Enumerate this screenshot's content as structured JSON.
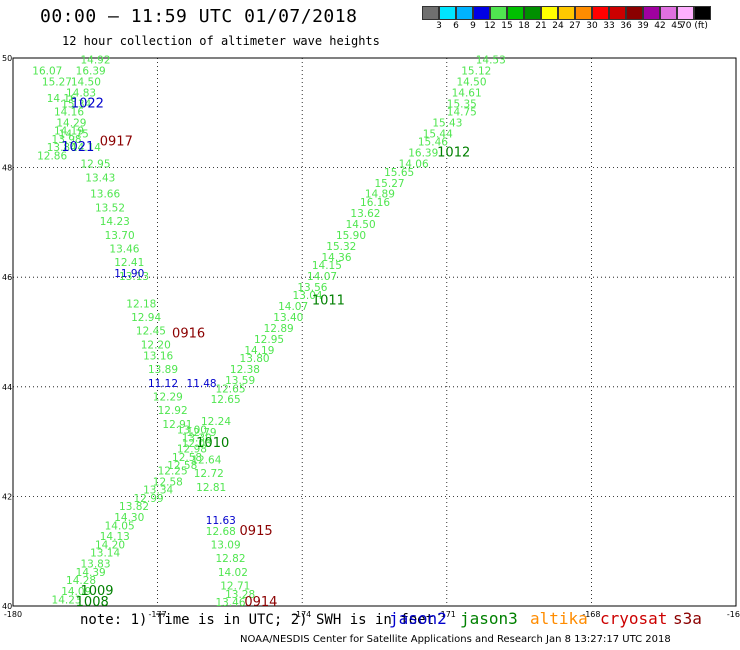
{
  "header": {
    "title": "00:00 – 11:59 UTC 01/07/2018",
    "subtitle": "12 hour collection of altimeter wave heights"
  },
  "colorbar": {
    "colors": [
      "#707070",
      "#00e5ff",
      "#00b3ff",
      "#0000e6",
      "#50e650",
      "#00c000",
      "#008f00",
      "#ffff00",
      "#ffc800",
      "#ff8c00",
      "#ff0000",
      "#cc0000",
      "#8b0000",
      "#a000a0",
      "#e070e0",
      "#ffb0ff",
      "#000000"
    ],
    "labels": [
      "3",
      "6",
      "9",
      "12",
      "15",
      "18",
      "21",
      "24",
      "27",
      "30",
      "33",
      "36",
      "39",
      "42",
      "45",
      "70 (ft)"
    ]
  },
  "axes": {
    "lon_min": -180,
    "lon_max": -165,
    "lat_min": 40,
    "lat_max": 50,
    "lon_ticks": [
      "-180",
      "-177",
      "-174",
      "-171",
      "-168",
      "-165"
    ],
    "lat_ticks": [
      "50",
      "48",
      "46",
      "44",
      "42",
      "40"
    ]
  },
  "colors": {
    "jason2": "#0000cc",
    "jason3": "#008000",
    "altika": "#ff8c00",
    "cryosat": "#cc0000",
    "s3a": "#8b0000",
    "wave_15_18": "#50e650",
    "wave_12_15": "#50e650"
  },
  "satellites": [
    {
      "name": "jason2",
      "color": "#0000cc"
    },
    {
      "name": "jason3",
      "color": "#008000"
    },
    {
      "name": "altika",
      "color": "#ff8c00"
    },
    {
      "name": "cryosat",
      "color": "#cc0000"
    },
    {
      "name": "s3a",
      "color": "#8b0000"
    }
  ],
  "footer": {
    "note": "note: 1) Time is in UTC; 2) SWH is in feet",
    "credit": "NOAA/NESDIS Center for Satellite Applications and Research   Jan  8 13:27:17 UTC 2018"
  },
  "map_data": {
    "time_labels": [
      {
        "text": "1022",
        "lon": -178.8,
        "lat": 49.1,
        "color": "#0000cc"
      },
      {
        "text": "1021",
        "lon": -179.0,
        "lat": 48.3,
        "color": "#0000cc"
      },
      {
        "text": "0917",
        "lon": -178.2,
        "lat": 48.4,
        "color": "#8b0000"
      },
      {
        "text": "1012",
        "lon": -171.2,
        "lat": 48.2,
        "color": "#008000"
      },
      {
        "text": "1011",
        "lon": -173.8,
        "lat": 45.5,
        "color": "#008000"
      },
      {
        "text": "0916",
        "lon": -176.7,
        "lat": 44.9,
        "color": "#8b0000"
      },
      {
        "text": "1010",
        "lon": -176.2,
        "lat": 42.9,
        "color": "#008000"
      },
      {
        "text": "0915",
        "lon": -175.3,
        "lat": 41.3,
        "color": "#8b0000"
      },
      {
        "text": "1009",
        "lon": -178.6,
        "lat": 40.2,
        "color": "#008000"
      },
      {
        "text": "1008",
        "lon": -178.7,
        "lat": 40.0,
        "color": "#008000"
      },
      {
        "text": "0914",
        "lon": -175.2,
        "lat": 40.0,
        "color": "#8b0000"
      }
    ],
    "tracks": [
      {
        "name": "track-0917",
        "color": "#50e650",
        "points": [
          {
            "v": "16.07",
            "lon": -179.6,
            "lat": 49.7
          },
          {
            "v": "15.27",
            "lon": -179.4,
            "lat": 49.5
          },
          {
            "v": "14.16",
            "lon": -179.3,
            "lat": 49.2
          },
          {
            "v": "14.16",
            "lon": -179.15,
            "lat": 48.95
          },
          {
            "v": "14.29",
            "lon": -179.1,
            "lat": 48.75
          },
          {
            "v": "14.19",
            "lon": -179.15,
            "lat": 48.6
          },
          {
            "v": "13.98",
            "lon": -179.2,
            "lat": 48.45
          },
          {
            "v": "13.84",
            "lon": -179.3,
            "lat": 48.3
          },
          {
            "v": "12.86",
            "lon": -179.5,
            "lat": 48.15
          },
          {
            "v": "14.14",
            "lon": -178.8,
            "lat": 48.3
          },
          {
            "v": "12.95",
            "lon": -178.6,
            "lat": 48.0
          },
          {
            "v": "13.43",
            "lon": -178.5,
            "lat": 47.75
          },
          {
            "v": "13.66",
            "lon": -178.4,
            "lat": 47.45
          },
          {
            "v": "13.52",
            "lon": -178.3,
            "lat": 47.2
          },
          {
            "v": "14.23",
            "lon": -178.2,
            "lat": 46.95
          },
          {
            "v": "13.70",
            "lon": -178.1,
            "lat": 46.7
          },
          {
            "v": "13.46",
            "lon": -178.0,
            "lat": 46.45
          },
          {
            "v": "12.41",
            "lon": -177.9,
            "lat": 46.2
          },
          {
            "v": "13.13",
            "lon": -177.8,
            "lat": 45.95
          },
          {
            "v": "12.18",
            "lon": -177.65,
            "lat": 45.45
          },
          {
            "v": "12.94",
            "lon": -177.55,
            "lat": 45.2
          },
          {
            "v": "12.45",
            "lon": -177.45,
            "lat": 44.95
          },
          {
            "v": "12.20",
            "lon": -177.35,
            "lat": 44.7
          },
          {
            "v": "13.16",
            "lon": -177.3,
            "lat": 44.5
          },
          {
            "v": "13.89",
            "lon": -177.2,
            "lat": 44.25
          },
          {
            "v": "12.29",
            "lon": -177.1,
            "lat": 43.75
          },
          {
            "v": "12.92",
            "lon": -177.0,
            "lat": 43.5
          },
          {
            "v": "12.91",
            "lon": -176.9,
            "lat": 43.25
          },
          {
            "v": "13.00",
            "lon": -176.6,
            "lat": 43.15
          },
          {
            "v": "13.30",
            "lon": -176.5,
            "lat": 43.0
          },
          {
            "v": "12.64",
            "lon": -176.3,
            "lat": 42.6
          },
          {
            "v": "12.72",
            "lon": -176.25,
            "lat": 42.35
          },
          {
            "v": "12.81",
            "lon": -176.2,
            "lat": 42.1
          },
          {
            "v": "12.68",
            "lon": -176.0,
            "lat": 41.3
          },
          {
            "v": "13.09",
            "lon": -175.9,
            "lat": 41.05
          },
          {
            "v": "12.82",
            "lon": -175.8,
            "lat": 40.8
          },
          {
            "v": "14.02",
            "lon": -175.75,
            "lat": 40.55
          },
          {
            "v": "12.71",
            "lon": -175.7,
            "lat": 40.3
          },
          {
            "v": "13.28",
            "lon": -175.6,
            "lat": 40.15
          },
          {
            "v": "13.46",
            "lon": -175.8,
            "lat": 40.0
          }
        ]
      },
      {
        "name": "track-1012-1008",
        "color": "#50e650",
        "points": [
          {
            "v": "14.53",
            "lon": -170.4,
            "lat": 49.9
          },
          {
            "v": "15.12",
            "lon": -170.7,
            "lat": 49.7
          },
          {
            "v": "14.50",
            "lon": -170.8,
            "lat": 49.5
          },
          {
            "v": "14.61",
            "lon": -170.9,
            "lat": 49.3
          },
          {
            "v": "15.35",
            "lon": -171.0,
            "lat": 49.1
          },
          {
            "v": "14.75",
            "lon": -171.0,
            "lat": 48.95
          },
          {
            "v": "15.43",
            "lon": -171.3,
            "lat": 48.75
          },
          {
            "v": "15.44",
            "lon": -171.5,
            "lat": 48.55
          },
          {
            "v": "15.46",
            "lon": -171.6,
            "lat": 48.4
          },
          {
            "v": "16.39",
            "lon": -171.8,
            "lat": 48.2
          },
          {
            "v": "14.06",
            "lon": -172.0,
            "lat": 48.0
          },
          {
            "v": "15.65",
            "lon": -172.3,
            "lat": 47.85
          },
          {
            "v": "15.27",
            "lon": -172.5,
            "lat": 47.65
          },
          {
            "v": "14.89",
            "lon": -172.7,
            "lat": 47.45
          },
          {
            "v": "16.16",
            "lon": -172.8,
            "lat": 47.3
          },
          {
            "v": "13.62",
            "lon": -173.0,
            "lat": 47.1
          },
          {
            "v": "14.50",
            "lon": -173.1,
            "lat": 46.9
          },
          {
            "v": "15.90",
            "lon": -173.3,
            "lat": 46.7
          },
          {
            "v": "15.32",
            "lon": -173.5,
            "lat": 46.5
          },
          {
            "v": "14.36",
            "lon": -173.6,
            "lat": 46.3
          },
          {
            "v": "14.15",
            "lon": -173.8,
            "lat": 46.15
          },
          {
            "v": "14.07",
            "lon": -173.9,
            "lat": 45.95
          },
          {
            "v": "13.56",
            "lon": -174.1,
            "lat": 45.75
          },
          {
            "v": "13.04",
            "lon": -174.2,
            "lat": 45.6
          },
          {
            "v": "14.07",
            "lon": -174.5,
            "lat": 45.4
          },
          {
            "v": "13.40",
            "lon": -174.6,
            "lat": 45.2
          },
          {
            "v": "12.89",
            "lon": -174.8,
            "lat": 45.0
          },
          {
            "v": "12.95",
            "lon": -175.0,
            "lat": 44.8
          },
          {
            "v": "14.19",
            "lon": -175.2,
            "lat": 44.6
          },
          {
            "v": "13.80",
            "lon": -175.3,
            "lat": 44.45
          },
          {
            "v": "12.38",
            "lon": -175.5,
            "lat": 44.25
          },
          {
            "v": "13.59",
            "lon": -175.6,
            "lat": 44.05
          },
          {
            "v": "12.65",
            "lon": -175.8,
            "lat": 43.9
          },
          {
            "v": "12.65",
            "lon": -175.9,
            "lat": 43.7
          },
          {
            "v": "12.24",
            "lon": -176.1,
            "lat": 43.3
          },
          {
            "v": "12.79",
            "lon": -176.4,
            "lat": 43.1
          },
          {
            "v": "12.03",
            "lon": -176.5,
            "lat": 42.9
          },
          {
            "v": "12.98",
            "lon": -176.6,
            "lat": 42.8
          },
          {
            "v": "12.58",
            "lon": -176.7,
            "lat": 42.65
          },
          {
            "v": "12.58",
            "lon": -176.8,
            "lat": 42.5
          },
          {
            "v": "12.25",
            "lon": -177.0,
            "lat": 42.4
          },
          {
            "v": "12.58",
            "lon": -177.1,
            "lat": 42.2
          },
          {
            "v": "13.34",
            "lon": -177.3,
            "lat": 42.05
          },
          {
            "v": "12.99",
            "lon": -177.5,
            "lat": 41.9
          },
          {
            "v": "13.82",
            "lon": -177.8,
            "lat": 41.75
          },
          {
            "v": "14.30",
            "lon": -177.9,
            "lat": 41.55
          },
          {
            "v": "14.05",
            "lon": -178.1,
            "lat": 41.4
          },
          {
            "v": "14.13",
            "lon": -178.2,
            "lat": 41.2
          },
          {
            "v": "14.20",
            "lon": -178.3,
            "lat": 41.05
          },
          {
            "v": "13.14",
            "lon": -178.4,
            "lat": 40.9
          },
          {
            "v": "13.83",
            "lon": -178.6,
            "lat": 40.7
          },
          {
            "v": "14.39",
            "lon": -178.7,
            "lat": 40.55
          },
          {
            "v": "14.28",
            "lon": -178.9,
            "lat": 40.4
          },
          {
            "v": "14.09",
            "lon": -179.0,
            "lat": 40.2
          },
          {
            "v": "14.23",
            "lon": -179.2,
            "lat": 40.05
          }
        ]
      },
      {
        "name": "track-1022-1021",
        "color": "#50e650",
        "points": [
          {
            "v": "14.92",
            "lon": -178.6,
            "lat": 49.9
          },
          {
            "v": "16.39",
            "lon": -178.7,
            "lat": 49.7
          },
          {
            "v": "14.50",
            "lon": -178.8,
            "lat": 49.5
          },
          {
            "v": "14.83",
            "lon": -178.9,
            "lat": 49.3
          },
          {
            "v": "15.34",
            "lon": -179.0,
            "lat": 49.1
          },
          {
            "v": "14.75",
            "lon": -179.05,
            "lat": 48.55
          }
        ]
      }
    ],
    "blue_points": [
      {
        "v": "11.90",
        "lon": -177.9,
        "lat": 46.0
      },
      {
        "v": "11.12",
        "lon": -177.2,
        "lat": 44.0
      },
      {
        "v": "11.48",
        "lon": -176.4,
        "lat": 44.0
      },
      {
        "v": "11.63",
        "lon": -176.0,
        "lat": 41.5
      }
    ]
  }
}
